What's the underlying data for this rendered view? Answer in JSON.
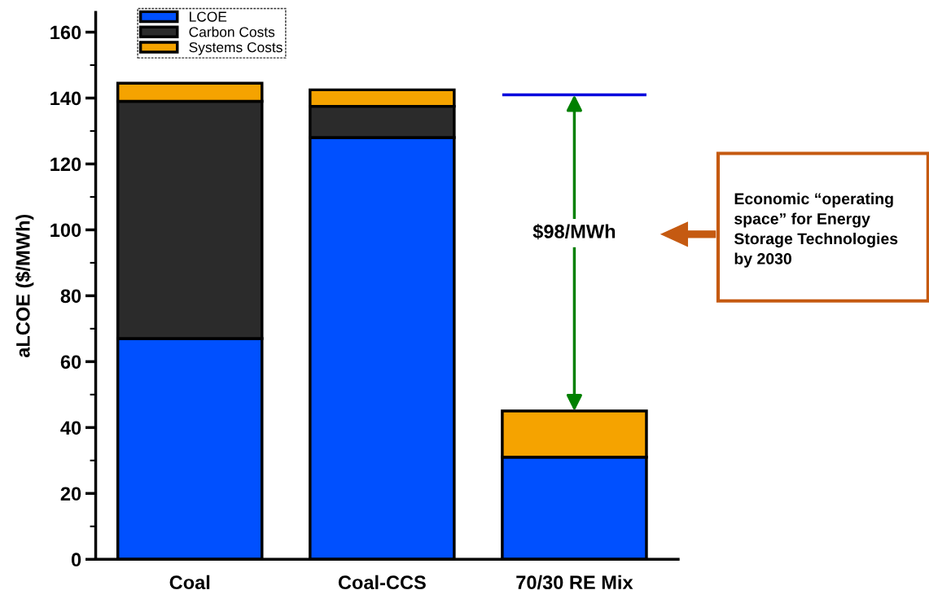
{
  "chart_data": {
    "type": "bar",
    "stacked": true,
    "ylabel": "aLCOE ($/MWh)",
    "categories": [
      "Coal",
      "Coal-CCS",
      "70/30 RE Mix"
    ],
    "series": [
      {
        "name": "LCOE",
        "color": "#0050ff",
        "values": [
          67,
          128,
          31
        ]
      },
      {
        "name": "Carbon Costs",
        "color": "#2b2b2b",
        "values": [
          72,
          9.5,
          null
        ]
      },
      {
        "name": "Systems Costs",
        "color": "#f5a300",
        "values": [
          5.5,
          5,
          14
        ]
      }
    ],
    "ylim": [
      0,
      166
    ],
    "yticks": [
      0,
      20,
      40,
      60,
      80,
      100,
      120,
      140,
      160
    ],
    "grid": false,
    "legend": "top left",
    "ref_lines": [
      {
        "axis": "y",
        "value": 141,
        "label": null,
        "color": "#0000dd"
      }
    ],
    "annotations": [
      "$98/MWh",
      "Economic “operating\nspace” for Energy\nStorage Technologies\nby 2030"
    ]
  }
}
